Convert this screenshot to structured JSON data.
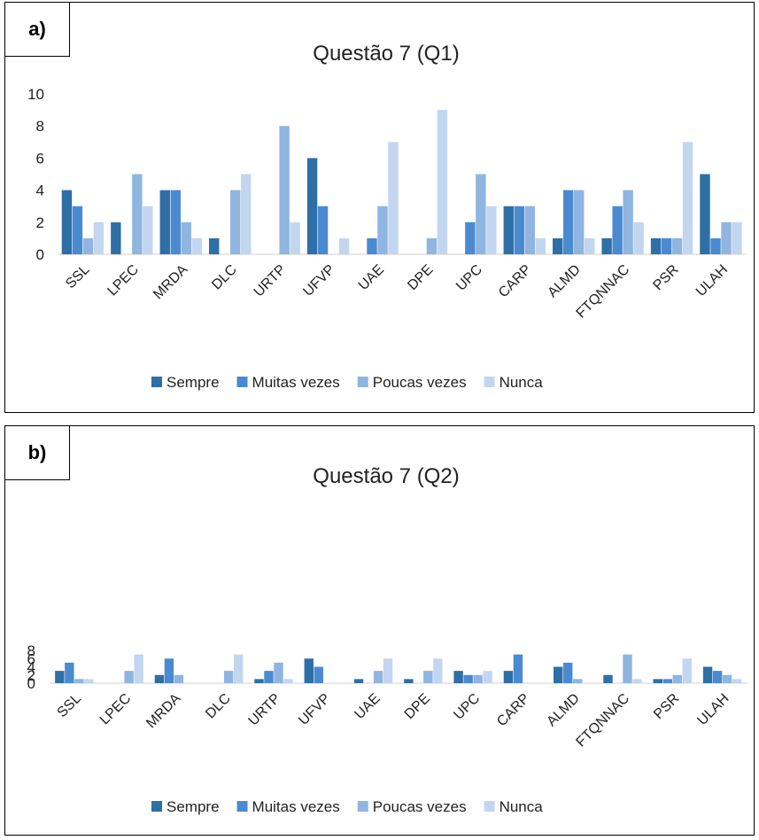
{
  "colors": {
    "Sempre": "#2e6fa6",
    "Muitas vezes": "#4a8ad0",
    "Poucas vezes": "#8fb5e0",
    "Nunca": "#c3d6ef"
  },
  "chart_data": [
    {
      "panel_label": "a)",
      "type": "bar",
      "title": "Questão 7 (Q1)",
      "xlabel": "",
      "ylabel": "",
      "ylim": [
        0,
        10
      ],
      "yticks": [
        "0",
        "2",
        "4",
        "6",
        "8",
        "10"
      ],
      "grid": false,
      "legend_position": "bottom",
      "categories": [
        "SSL",
        "LPEC",
        "MRDA",
        "DLC",
        "URTP",
        "UFVP",
        "UAE",
        "DPE",
        "UPC",
        "CARP",
        "ALMD",
        "FTQNNAC",
        "PSR",
        "ULAH"
      ],
      "series": [
        {
          "name": "Sempre",
          "values": [
            4,
            2,
            4,
            1,
            0,
            6,
            0,
            0,
            0,
            3,
            1,
            1,
            1,
            5
          ]
        },
        {
          "name": "Muitas vezes",
          "values": [
            3,
            0,
            4,
            0,
            0,
            3,
            1,
            0,
            2,
            3,
            4,
            3,
            1,
            1
          ]
        },
        {
          "name": "Poucas vezes",
          "values": [
            1,
            5,
            2,
            4,
            8,
            0,
            3,
            1,
            5,
            3,
            4,
            4,
            1,
            2
          ]
        },
        {
          "name": "Nunca",
          "values": [
            2,
            3,
            1,
            5,
            2,
            1,
            7,
            9,
            3,
            1,
            1,
            2,
            7,
            2
          ]
        }
      ]
    },
    {
      "panel_label": "b)",
      "type": "bar",
      "title": "Questão 7 (Q2)",
      "xlabel": "",
      "ylabel": "",
      "ylim": [
        0,
        8
      ],
      "yticks": [
        "0",
        "2",
        "4",
        "6",
        "8"
      ],
      "grid": false,
      "legend_position": "bottom",
      "categories": [
        "SSL",
        "LPEC",
        "MRDA",
        "DLC",
        "URTP",
        "UFVP",
        "UAE",
        "DPE",
        "UPC",
        "CARP",
        "ALMD",
        "FTQNNAC",
        "PSR",
        "ULAH"
      ],
      "series": [
        {
          "name": "Sempre",
          "values": [
            3,
            0,
            2,
            0,
            1,
            6,
            1,
            1,
            3,
            3,
            4,
            2,
            1,
            4
          ]
        },
        {
          "name": "Muitas vezes",
          "values": [
            5,
            0,
            6,
            0,
            3,
            4,
            0,
            0,
            2,
            7,
            5,
            0,
            1,
            3
          ]
        },
        {
          "name": "Poucas vezes",
          "values": [
            1,
            3,
            2,
            3,
            5,
            0,
            3,
            3,
            2,
            0,
            1,
            7,
            2,
            2
          ]
        },
        {
          "name": "Nunca",
          "values": [
            1,
            7,
            0,
            7,
            1,
            0,
            6,
            6,
            3,
            0,
            0,
            1,
            6,
            1
          ]
        }
      ]
    }
  ]
}
